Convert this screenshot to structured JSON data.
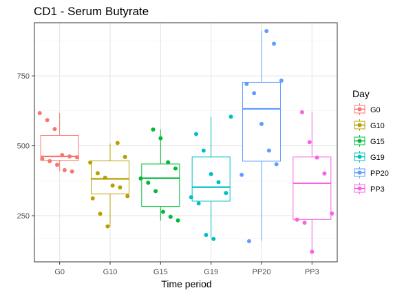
{
  "chart_data": {
    "type": "box",
    "title": "CD1 - Serum Butyrate",
    "xlabel": "Time period",
    "ylabel": "",
    "categories": [
      "G0",
      "G10",
      "G15",
      "G19",
      "PP20",
      "PP3"
    ],
    "yticks": [
      250,
      500,
      750
    ],
    "ylim": [
      85,
      940
    ],
    "grid": true,
    "legend": {
      "title": "Day",
      "position": "right",
      "entries": [
        "G0",
        "G10",
        "G15",
        "G19",
        "PP20",
        "PP3"
      ]
    },
    "colors": [
      "#F8766D",
      "#B79F00",
      "#00BA38",
      "#00BFC4",
      "#619CFF",
      "#F564E3"
    ],
    "series": [
      {
        "name": "G0",
        "box": {
          "whisker_low": 410,
          "q1": 448,
          "median": 462,
          "q3": 537,
          "whisker_high": 617
        },
        "points": [
          617,
          592,
          560,
          467,
          462,
          459,
          453,
          445,
          432,
          413,
          408
        ]
      },
      {
        "name": "G10",
        "box": {
          "whisker_low": 212,
          "q1": 328,
          "median": 382,
          "q3": 446,
          "whisker_high": 508
        },
        "points": [
          510,
          460,
          440,
          402,
          386,
          358,
          351,
          320,
          312,
          257,
          212
        ]
      },
      {
        "name": "G15",
        "box": {
          "whisker_low": 232,
          "q1": 283,
          "median": 384,
          "q3": 435,
          "whisker_high": 558
        },
        "points": [
          558,
          527,
          441,
          419,
          383,
          368,
          338,
          264,
          246,
          233
        ]
      },
      {
        "name": "G19",
        "box": {
          "whisker_low": 170,
          "q1": 302,
          "median": 352,
          "q3": 460,
          "whisker_high": 604
        },
        "points": [
          604,
          542,
          483,
          399,
          370,
          331,
          316,
          294,
          181,
          167
        ]
      },
      {
        "name": "PP20",
        "box": {
          "whisker_low": 160,
          "q1": 445,
          "median": 632,
          "q3": 727,
          "whisker_high": 912
        },
        "points": [
          910,
          865,
          733,
          721,
          688,
          578,
          483,
          434,
          396,
          159
        ]
      },
      {
        "name": "PP3",
        "box": {
          "whisker_low": 122,
          "q1": 237,
          "median": 366,
          "q3": 460,
          "whisker_high": 620
        },
        "points": [
          620,
          513,
          458,
          401,
          258,
          236,
          225,
          121
        ]
      }
    ]
  }
}
